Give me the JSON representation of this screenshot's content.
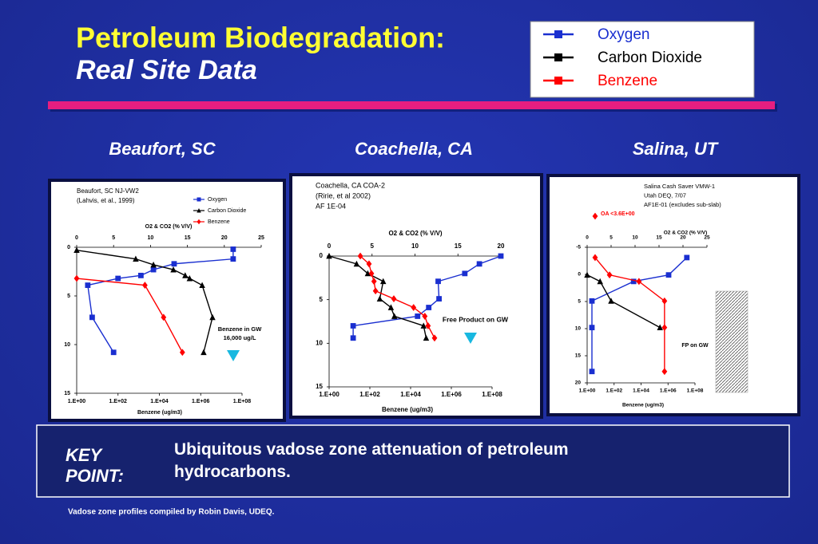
{
  "slide": {
    "title": "Petroleum Biodegradation:",
    "subtitle": "Real Site Data",
    "legend": [
      {
        "name": "Oxygen",
        "color": "#1a2fd0"
      },
      {
        "name": "Carbon Dioxide",
        "color": "#000000"
      },
      {
        "name": "Benzene",
        "color": "#ff0000"
      }
    ],
    "key_label": "KEY POINT:",
    "key_text": "Ubiquitous vadose zone attenuation of petroleum hydrocarbons.",
    "footer": "Vadose zone profiles compiled by Robin Davis, UDEQ."
  },
  "chart_data": [
    {
      "type": "line",
      "site": "Beaufort, SC",
      "title": [
        "Beaufort, SC NJ-VW2",
        "(Lahvis, et al., 1999)"
      ],
      "xlabel": "O2 & CO2 (% V/V)",
      "x2label": "Benzene (ug/m3)",
      "xlim": [
        0,
        25
      ],
      "xticks": [
        0,
        5,
        10,
        15,
        20,
        25
      ],
      "x2lim": [
        1,
        100000000
      ],
      "x2log": true,
      "x2ticks": [
        {
          "value": 1,
          "label": "1.E+00"
        },
        {
          "value": 100,
          "label": "1.E+02"
        },
        {
          "value": 10000,
          "label": "1.E+04"
        },
        {
          "value": 1000000,
          "label": "1.E+06"
        },
        {
          "value": 100000000,
          "label": "1.E+08"
        }
      ],
      "ylim": [
        0,
        15
      ],
      "yticks": [
        0,
        5,
        10,
        15
      ],
      "yinverted": true,
      "legend": true,
      "annotations": [
        "Benzene in GW",
        "16,000 ug/L"
      ],
      "series": [
        {
          "name": "Oxygen",
          "color": "#1a2fd0",
          "marker": "square",
          "x": [
            21.2,
            21.2,
            13.2,
            10.4,
            8.7,
            5.6,
            1.5,
            2.1,
            5.0
          ],
          "y": [
            0.2,
            1.2,
            1.7,
            2.3,
            2.9,
            3.2,
            3.9,
            7.2,
            10.8
          ]
        },
        {
          "name": "Carbon Dioxide",
          "color": "#000000",
          "marker": "triangle",
          "x": [
            0,
            8,
            10.4,
            13.1,
            14.7,
            15.3,
            17,
            18.4,
            17.2
          ],
          "y": [
            0.3,
            1.2,
            1.8,
            2.3,
            2.9,
            3.2,
            3.9,
            7.2,
            10.8
          ]
        },
        {
          "name": "Benzene",
          "color": "#ff0000",
          "marker": "diamond",
          "axis": "x2",
          "x": [
            1,
            2000,
            16000,
            130000
          ],
          "y": [
            3.2,
            3.9,
            7.2,
            10.8
          ]
        }
      ]
    },
    {
      "type": "line",
      "site": "Coachella, CA",
      "title": [
        "Coachella, CA COA-2",
        "(Ririe, et al 2002)",
        "AF 1E-04"
      ],
      "xlabel": "O2 & CO2 (% V/V)",
      "x2label": "Benzene (ug/m3)",
      "xlim": [
        0,
        20
      ],
      "xticks": [
        0,
        5,
        10,
        15,
        20
      ],
      "x2lim": [
        1,
        100000000
      ],
      "x2log": true,
      "x2ticks": [
        {
          "value": 1,
          "label": "1.E+00"
        },
        {
          "value": 100,
          "label": "1.E+02"
        },
        {
          "value": 10000,
          "label": "1.E+04"
        },
        {
          "value": 1000000,
          "label": "1.E+06"
        },
        {
          "value": 100000000,
          "label": "1.E+08"
        }
      ],
      "ylim": [
        0,
        15
      ],
      "yticks": [
        0,
        5,
        10,
        15
      ],
      "yinverted": true,
      "legend": false,
      "annotations": [
        "Free Product on GW"
      ],
      "series": [
        {
          "name": "Oxygen",
          "color": "#1a2fd0",
          "marker": "square",
          "x": [
            20,
            17.5,
            15.8,
            12.7,
            12.8,
            11.6,
            10.3,
            2.8,
            2.8
          ],
          "y": [
            0,
            0.9,
            2.0,
            2.9,
            4.9,
            5.9,
            6.9,
            8.0,
            9.4
          ]
        },
        {
          "name": "Carbon Dioxide",
          "color": "#000000",
          "marker": "triangle",
          "x": [
            0,
            3.2,
            4.5,
            6.3,
            5.9,
            7.2,
            7.6,
            11,
            11.3
          ],
          "y": [
            0,
            0.9,
            2.0,
            2.9,
            4.9,
            5.9,
            6.9,
            8.0,
            9.4
          ]
        },
        {
          "name": "Benzene",
          "color": "#ff0000",
          "marker": "diamond",
          "axis": "x2",
          "x": [
            34,
            91,
            120,
            160,
            190,
            1500,
            14000,
            50000,
            72000,
            150000
          ],
          "y": [
            0,
            0.9,
            2.0,
            2.9,
            4.0,
            4.9,
            5.9,
            6.9,
            8.0,
            9.4
          ]
        }
      ]
    },
    {
      "type": "line",
      "site": "Salina, UT",
      "title": [
        "Salina  Cash Saver VMW-1",
        "Utah DEQ, 7/07",
        "AF1E-01 (excludes sub-slab)"
      ],
      "xlabel": "O2 & CO2 (% V/V)",
      "x2label": "Benzene (ug/m3)",
      "xlim": [
        0,
        25
      ],
      "xticks": [
        0,
        5,
        10,
        15,
        20,
        25
      ],
      "x2lim": [
        1,
        100000000
      ],
      "x2log": true,
      "x2ticks": [
        {
          "value": 1,
          "label": "1.E+00"
        },
        {
          "value": 100,
          "label": "1.E+02"
        },
        {
          "value": 10000,
          "label": "1.E+04"
        },
        {
          "value": 1000000,
          "label": "1.E+06"
        },
        {
          "value": 100000000,
          "label": "1.E+08"
        }
      ],
      "ylim": [
        -5,
        20
      ],
      "yticks": [
        -5,
        0,
        5,
        10,
        15,
        20
      ],
      "yinverted": true,
      "legend": false,
      "annotations": [
        "FP on GW",
        "OA <3.6E+00"
      ],
      "series": [
        {
          "name": "Oxygen",
          "color": "#1a2fd0",
          "marker": "square",
          "x": [
            20.8,
            17,
            9.7,
            1,
            1,
            1
          ],
          "y": [
            -3.1,
            0.1,
            1.3,
            4.9,
            9.8,
            17.9
          ]
        },
        {
          "name": "Carbon Dioxide",
          "color": "#000000",
          "marker": "triangle",
          "x": [
            0,
            2.7,
            5,
            15.2
          ],
          "y": [
            0.1,
            1.3,
            4.9,
            9.8
          ]
        },
        {
          "name": "Benzene",
          "color": "#ff0000",
          "marker": "diamond",
          "axis": "x2",
          "x": [
            3.9,
            46,
            7000,
            550000,
            550000,
            550000
          ],
          "y": [
            -3.1,
            0.1,
            1.3,
            4.9,
            9.8,
            17.9
          ]
        }
      ]
    }
  ]
}
